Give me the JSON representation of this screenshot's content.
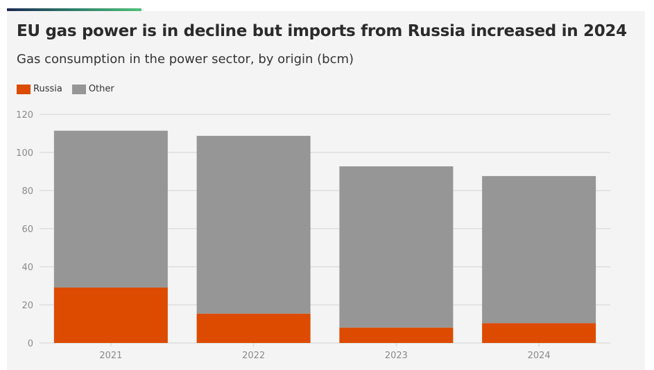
{
  "title": "EU gas power is in decline but imports from Russia increased in 2024",
  "subtitle": "Gas consumption in the power sector, by origin (bcm)",
  "colors": {
    "Russia": "#dc4b00",
    "Other": "#969696",
    "grid": "#d2d2d2",
    "background": "#f4f4f4"
  },
  "chart_data": {
    "type": "bar",
    "stacked": true,
    "categories": [
      "2021",
      "2022",
      "2023",
      "2024"
    ],
    "series": [
      {
        "name": "Russia",
        "values": [
          29.1,
          15.4,
          8.1,
          10.4
        ]
      },
      {
        "name": "Other",
        "values": [
          82.3,
          93.3,
          84.6,
          77.2
        ]
      }
    ],
    "yticks": [
      "0",
      "20",
      "40",
      "60",
      "80",
      "100",
      "120"
    ],
    "ylim": [
      0,
      120
    ],
    "grid": true,
    "legend": "top-left"
  }
}
